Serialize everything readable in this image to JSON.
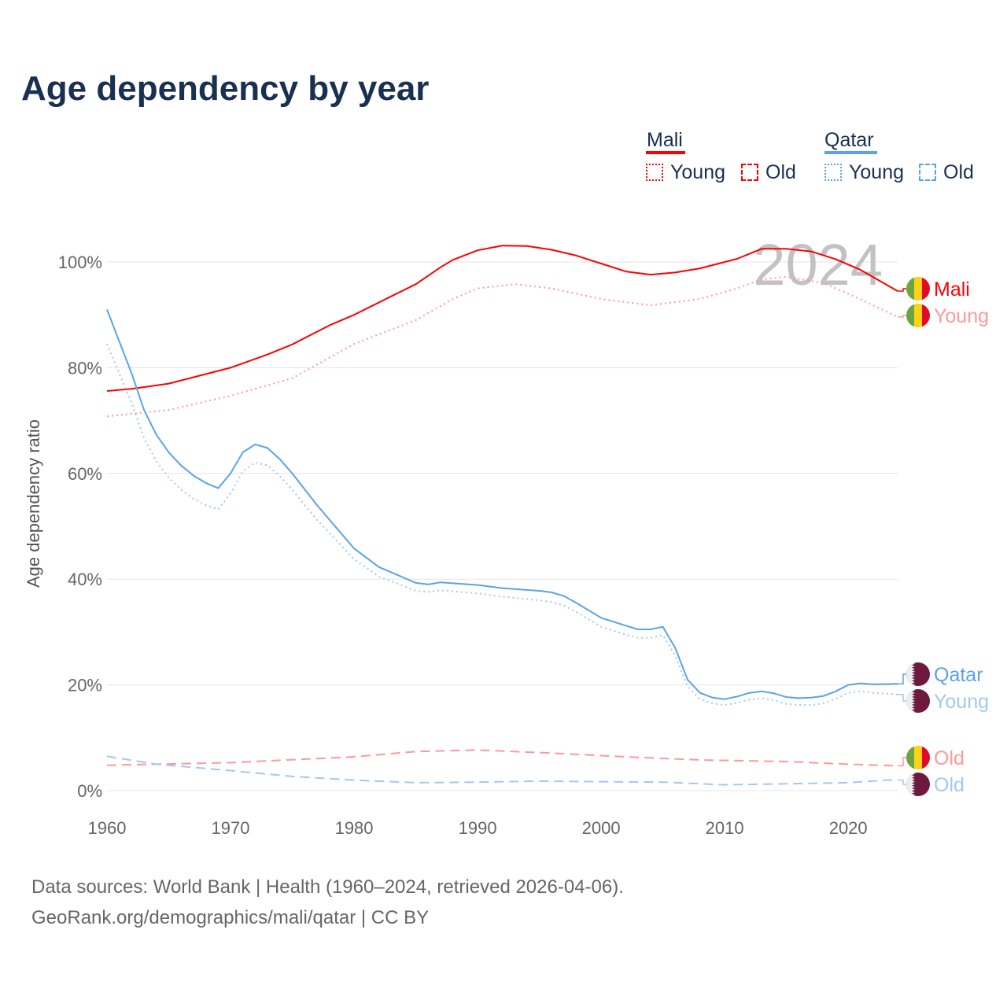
{
  "title": "Age dependency by year",
  "legend": {
    "mali": "Mali",
    "qatar": "Qatar",
    "young": "Young",
    "old": "Old"
  },
  "footer": {
    "line1": "Data sources: World Bank | Health (1960–2024, retrieved 2026-04-06).",
    "line2": "GeoRank.org/demographics/mali/qatar | CC BY"
  },
  "chart_data": {
    "type": "line",
    "title": "Age dependency by year",
    "ylabel": "Age dependency ratio",
    "xlabel": "",
    "xlim": [
      1960,
      2024
    ],
    "ylim": [
      0,
      100
    ],
    "year_label": "2024",
    "x_ticks": [
      "1960",
      "1970",
      "1980",
      "1990",
      "2000",
      "2010",
      "2020"
    ],
    "y_ticks": [
      "0%",
      "20%",
      "40%",
      "60%",
      "80%",
      "100%"
    ],
    "colors": {
      "mali": "#ff0000",
      "mali_light": "#ff9999",
      "qatar": "#5ba3e8",
      "qatar_light": "#a3c8f0"
    },
    "series": [
      {
        "name": "Mali",
        "end_label": "Mali",
        "country": "mali",
        "style": "solid",
        "color": "#ff0000",
        "x": [
          1960,
          1962,
          1965,
          1968,
          1970,
          1973,
          1975,
          1978,
          1980,
          1983,
          1985,
          1987,
          1988,
          1990,
          1992,
          1994,
          1996,
          1998,
          2000,
          2002,
          2004,
          2006,
          2008,
          2010,
          2011,
          2013,
          2015,
          2017,
          2019,
          2021,
          2024
        ],
        "y": [
          75.6,
          76,
          77,
          78.8,
          80,
          82.5,
          84.4,
          88,
          90,
          93.5,
          95.8,
          99,
          100.4,
          102.2,
          103.1,
          103,
          102.3,
          101.2,
          99.7,
          98.2,
          97.6,
          98,
          98.8,
          100,
          100.6,
          102.5,
          102.5,
          102,
          100.5,
          98.5,
          94.5
        ]
      },
      {
        "name": "Mali Young",
        "end_label": "Young",
        "country": "mali",
        "style": "dotted",
        "color": "#ff9999",
        "x": [
          1960,
          1965,
          1970,
          1975,
          1980,
          1985,
          1988,
          1990,
          1993,
          1996,
          2000,
          2004,
          2008,
          2011,
          2013,
          2015,
          2018,
          2020,
          2024
        ],
        "y": [
          70.8,
          72,
          74.7,
          78,
          84.5,
          89,
          93,
          95,
          95.8,
          95,
          93,
          91.8,
          93,
          95,
          96.7,
          97.2,
          96,
          94,
          89.6
        ]
      },
      {
        "name": "Mali Old",
        "end_label": "Old",
        "country": "mali",
        "style": "dashed",
        "color": "#ff9999",
        "x": [
          1960,
          1970,
          1980,
          1985,
          1990,
          1996,
          2002,
          2008,
          2015,
          2020,
          2024
        ],
        "y": [
          4.8,
          5.3,
          6.4,
          7.4,
          7.7,
          7.1,
          6.4,
          5.8,
          5.5,
          5.0,
          4.7
        ]
      },
      {
        "name": "Qatar",
        "end_label": "Qatar",
        "country": "qatar",
        "style": "solid",
        "color": "#5ba3e8",
        "x": [
          1960,
          1962,
          1963,
          1964,
          1965,
          1966,
          1967,
          1968,
          1969,
          1970,
          1971,
          1972,
          1973,
          1974,
          1975,
          1977,
          1980,
          1982,
          1985,
          1986,
          1987,
          1990,
          1992,
          1995,
          1996,
          1997,
          1998,
          2000,
          2002,
          2003,
          2004,
          2005,
          2006,
          2007,
          2008,
          2009,
          2010,
          2011,
          2012,
          2013,
          2014,
          2015,
          2016,
          2017,
          2018,
          2019,
          2020,
          2021,
          2022,
          2024
        ],
        "y": [
          91,
          78.9,
          72,
          67.3,
          64,
          61.5,
          59.6,
          58.2,
          57.2,
          60,
          64,
          65.5,
          64.8,
          62.7,
          60,
          54,
          45.8,
          42.3,
          39.3,
          39,
          39.4,
          38.9,
          38.3,
          37.8,
          37.5,
          36.8,
          35.5,
          32.7,
          31.2,
          30.5,
          30.5,
          31,
          27,
          21,
          18.5,
          17.6,
          17.3,
          17.8,
          18.5,
          18.8,
          18.4,
          17.7,
          17.5,
          17.6,
          17.9,
          18.8,
          20,
          20.3,
          20.1,
          20.2
        ]
      },
      {
        "name": "Qatar Young",
        "end_label": "Young",
        "country": "qatar",
        "style": "dotted",
        "color": "#a3c8f0",
        "x": [
          1960,
          1962,
          1963,
          1964,
          1965,
          1966,
          1967,
          1968,
          1969,
          1970,
          1971,
          1972,
          1973,
          1974,
          1975,
          1977,
          1980,
          1982,
          1985,
          1986,
          1987,
          1990,
          1992,
          1995,
          1996,
          1997,
          1998,
          2000,
          2002,
          2003,
          2004,
          2005,
          2006,
          2007,
          2008,
          2009,
          2010,
          2011,
          2012,
          2013,
          2014,
          2015,
          2016,
          2017,
          2018,
          2019,
          2020,
          2021,
          2022,
          2024
        ],
        "y": [
          84.5,
          73.3,
          66.7,
          62.3,
          59.2,
          56.9,
          55.2,
          54,
          53.2,
          56.2,
          60.4,
          62.1,
          61.5,
          59.5,
          56.9,
          51.2,
          43.8,
          40.5,
          37.8,
          37.6,
          37.9,
          37.3,
          36.7,
          36,
          35.7,
          35,
          33.8,
          31,
          29.5,
          28.9,
          28.9,
          29.4,
          25.5,
          19.7,
          17.3,
          16.5,
          16.2,
          16.6,
          17.2,
          17.5,
          17.1,
          16.4,
          16.2,
          16.2,
          16.5,
          17.4,
          18.5,
          18.8,
          18.5,
          18.2
        ]
      },
      {
        "name": "Qatar Old",
        "end_label": "Old",
        "country": "qatar",
        "style": "dashed",
        "color": "#a3c8f0",
        "x": [
          1960,
          1964,
          1970,
          1975,
          1980,
          1985,
          1990,
          1995,
          2000,
          2005,
          2010,
          2015,
          2020,
          2023,
          2024
        ],
        "y": [
          6.5,
          5.0,
          3.8,
          2.7,
          2.0,
          1.5,
          1.6,
          1.8,
          1.7,
          1.6,
          1.1,
          1.3,
          1.5,
          2.0,
          2.0
        ]
      }
    ]
  }
}
